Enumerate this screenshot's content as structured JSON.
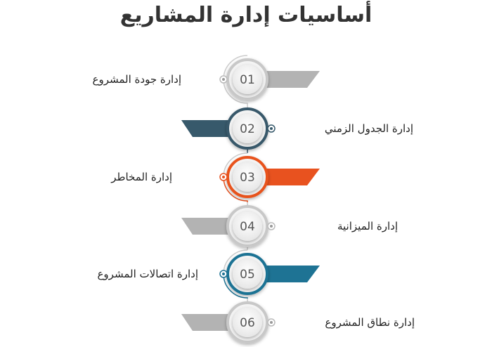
{
  "title": "أساسيات إدارة المشاريع",
  "items": [
    {
      "number": "01",
      "label": "إدارة جودة المشروع",
      "color": "#b3b3b3"
    },
    {
      "number": "02",
      "label": "إدارة الجدول الزمني",
      "color": "#37596b"
    },
    {
      "number": "03",
      "label": "إدارة المخاطر",
      "color": "#e8521f"
    },
    {
      "number": "04",
      "label": "إدارة الميزانية",
      "color": "#b3b3b3"
    },
    {
      "number": "05",
      "label": "إدارة اتصالات المشروع",
      "color": "#1e7394"
    },
    {
      "number": "06",
      "label": "إدارة نطاق المشروع",
      "color": "#b3b3b3"
    }
  ]
}
